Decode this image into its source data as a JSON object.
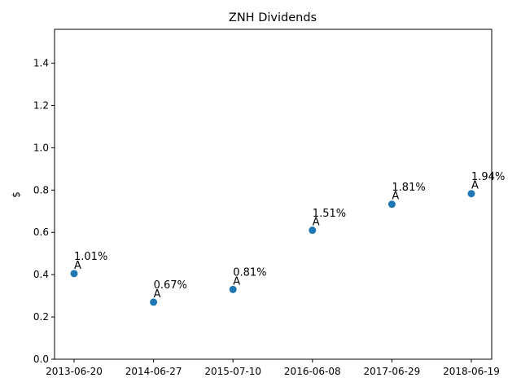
{
  "chart_data": {
    "type": "scatter",
    "title": "ZNH Dividends",
    "xlabel": "",
    "ylabel": "$",
    "ylim": [
      0,
      1.56
    ],
    "yticks": [
      "0.0",
      "0.2",
      "0.4",
      "0.6",
      "0.8",
      "1.0",
      "1.2",
      "1.4"
    ],
    "grid": false,
    "marker_color": "#1f77b4",
    "points": [
      {
        "x": "2013-06-20",
        "y": 0.405,
        "label": "A",
        "yield": "1.01%"
      },
      {
        "x": "2014-06-27",
        "y": 0.27,
        "label": "A",
        "yield": "0.67%"
      },
      {
        "x": "2015-07-10",
        "y": 0.33,
        "label": "A",
        "yield": "0.81%"
      },
      {
        "x": "2016-06-08",
        "y": 0.61,
        "label": "A",
        "yield": "1.51%"
      },
      {
        "x": "2017-06-29",
        "y": 0.733,
        "label": "A",
        "yield": "1.81%"
      },
      {
        "x": "2018-06-19",
        "y": 0.783,
        "label": "A",
        "yield": "1.94%"
      }
    ]
  }
}
